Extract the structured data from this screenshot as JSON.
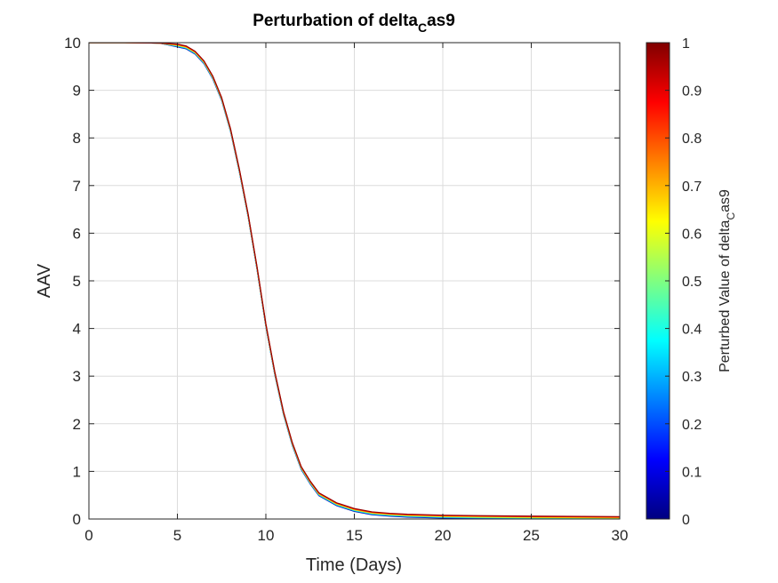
{
  "chart_data": {
    "type": "line",
    "title": "Perturbation of delta",
    "title_subscript": "C",
    "title_suffix": "as9",
    "xlabel": "Time (Days)",
    "ylabel": "AAV",
    "xlim": [
      0,
      30
    ],
    "ylim": [
      0,
      10
    ],
    "xticks": [
      0,
      5,
      10,
      15,
      20,
      25,
      30
    ],
    "yticks": [
      0,
      1,
      2,
      3,
      4,
      5,
      6,
      7,
      8,
      9,
      10
    ],
    "grid": true,
    "series_colors": [
      "#000096",
      "#0050ff",
      "#00c8ff",
      "#50ff96",
      "#ffff00",
      "#ff9600",
      "#ff1e00",
      "#960000"
    ],
    "curve": {
      "x": [
        0,
        2,
        4,
        5,
        5.5,
        6,
        6.5,
        7,
        7.5,
        8,
        8.5,
        9,
        9.5,
        10,
        10.5,
        11,
        11.5,
        12,
        12.5,
        13,
        14,
        15,
        16,
        17,
        18,
        20,
        22,
        25,
        30
      ],
      "y": [
        10,
        10,
        9.99,
        9.97,
        9.93,
        9.82,
        9.62,
        9.3,
        8.85,
        8.2,
        7.35,
        6.4,
        5.3,
        4.1,
        3.1,
        2.25,
        1.6,
        1.1,
        0.8,
        0.55,
        0.34,
        0.22,
        0.15,
        0.12,
        0.1,
        0.08,
        0.07,
        0.06,
        0.05
      ]
    },
    "colorbar": {
      "label": "Perturbed Value of delta",
      "label_subscript": "C",
      "label_suffix": "as9",
      "ticks": [
        "0",
        "0.1",
        "0.2",
        "0.3",
        "0.4",
        "0.5",
        "0.6",
        "0.7",
        "0.8",
        "0.9",
        "1"
      ],
      "range": [
        0,
        1
      ],
      "colormap": "jet",
      "stops": [
        "#000080",
        "#0000ff",
        "#0080ff",
        "#00ffff",
        "#80ff80",
        "#ffff00",
        "#ff8000",
        "#ff0000",
        "#800000"
      ]
    }
  }
}
